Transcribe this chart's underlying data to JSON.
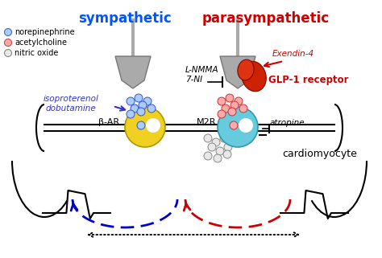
{
  "bg_color": "#ffffff",
  "sympathetic_label": "sympathetic",
  "parasympathetic_label": "parasympathetic",
  "sympathetic_color": "#0055ff",
  "parasympathetic_color": "#cc0000",
  "legend_items": [
    {
      "label": "norepinephrine",
      "facecolor": "#aaccff",
      "edgecolor": "#4466cc"
    },
    {
      "label": "acetylcholine",
      "facecolor": "#ffaaaa",
      "edgecolor": "#cc4444"
    },
    {
      "label": "nitric oxide",
      "facecolor": "#e8e8e8",
      "edgecolor": "#888888"
    }
  ],
  "beta_ar_label": "β-AR",
  "m2r_label": "M2R",
  "glp1_label": "GLP-1 receptor",
  "glp1_color": "#cc0000",
  "exendin_label": "Exendin-4",
  "exendin_color": "#cc0000",
  "lnmma_label": "L-NMMA\n7-NI",
  "isoproterenol_label": "isoproterenol\ndobutamine",
  "isoproterenol_color": "#3333cc",
  "atropine_label": "atropine",
  "cardiomyocyte_label": "cardiomyocyte",
  "beta_ar_color": "#f0d020",
  "beta_ar_edge": "#aa9900",
  "m2r_color": "#66ccdd",
  "m2r_edge": "#3399aa",
  "neuron_color": "#aaaaaa",
  "neuron_edge": "#777777",
  "blue_arrow_color": "#0000cc",
  "red_arrow_color": "#cc0000"
}
